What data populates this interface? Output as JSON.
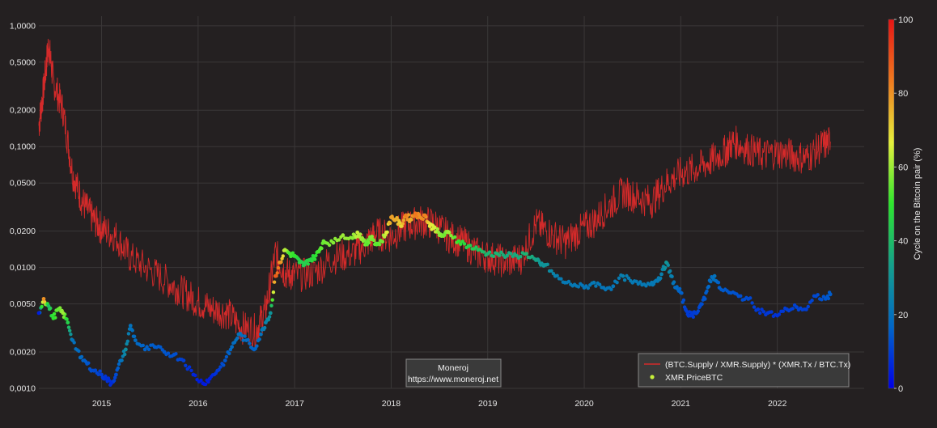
{
  "chart_data": {
    "type": "line",
    "title": "",
    "xlabel": "",
    "ylabel": "",
    "y_scale": "log",
    "ylim": [
      0.001,
      1.2
    ],
    "xlim": [
      2014.35,
      2022.9
    ],
    "grid": true,
    "y_ticks": [
      {
        "value": 1.0,
        "label": "1,0000"
      },
      {
        "value": 0.5,
        "label": "0,5000"
      },
      {
        "value": 0.2,
        "label": "0,2000"
      },
      {
        "value": 0.1,
        "label": "0,1000"
      },
      {
        "value": 0.05,
        "label": "0,0500"
      },
      {
        "value": 0.02,
        "label": "0,0200"
      },
      {
        "value": 0.01,
        "label": "0,0100"
      },
      {
        "value": 0.005,
        "label": "0,0050"
      },
      {
        "value": 0.002,
        "label": "0,0020"
      },
      {
        "value": 0.001,
        "label": "0,0010"
      }
    ],
    "x_ticks": [
      {
        "value": 2015,
        "label": "2015"
      },
      {
        "value": 2016,
        "label": "2016"
      },
      {
        "value": 2017,
        "label": "2017"
      },
      {
        "value": 2018,
        "label": "2018"
      },
      {
        "value": 2019,
        "label": "2019"
      },
      {
        "value": 2020,
        "label": "2020"
      },
      {
        "value": 2021,
        "label": "2021"
      },
      {
        "value": 2022,
        "label": "2022"
      }
    ],
    "series": [
      {
        "name": "(BTC.Supply / XMR.Supply) * (XMR.Tx / BTC.Tx)",
        "type": "line",
        "color": "#d42a2a",
        "x": [
          2014.35,
          2014.4,
          2014.45,
          2014.5,
          2014.6,
          2014.7,
          2014.8,
          2014.9,
          2015.0,
          2015.15,
          2015.3,
          2015.5,
          2015.7,
          2015.85,
          2016.0,
          2016.15,
          2016.3,
          2016.45,
          2016.6,
          2016.7,
          2016.8,
          2016.9,
          2017.0,
          2017.2,
          2017.4,
          2017.6,
          2017.75,
          2017.85,
          2018.0,
          2018.15,
          2018.3,
          2018.45,
          2018.6,
          2018.75,
          2018.9,
          2019.05,
          2019.2,
          2019.35,
          2019.5,
          2019.65,
          2019.8,
          2019.95,
          2020.1,
          2020.25,
          2020.4,
          2020.55,
          2020.7,
          2020.85,
          2021.0,
          2021.15,
          2021.3,
          2021.45,
          2021.55,
          2021.7,
          2021.85,
          2022.0,
          2022.15,
          2022.3,
          2022.45,
          2022.55
        ],
        "y": [
          0.15,
          0.3,
          0.7,
          0.35,
          0.2,
          0.06,
          0.035,
          0.026,
          0.021,
          0.018,
          0.012,
          0.0095,
          0.0075,
          0.0062,
          0.0052,
          0.0045,
          0.0042,
          0.0032,
          0.003,
          0.0045,
          0.013,
          0.009,
          0.0085,
          0.009,
          0.012,
          0.013,
          0.016,
          0.019,
          0.018,
          0.022,
          0.024,
          0.023,
          0.018,
          0.016,
          0.013,
          0.012,
          0.011,
          0.012,
          0.023,
          0.019,
          0.016,
          0.02,
          0.024,
          0.032,
          0.042,
          0.038,
          0.035,
          0.05,
          0.06,
          0.065,
          0.075,
          0.09,
          0.11,
          0.095,
          0.085,
          0.09,
          0.085,
          0.08,
          0.1,
          0.11
        ]
      },
      {
        "name": "XMR.PriceBTC",
        "type": "scatter",
        "color": "#c6f03a",
        "x": [
          2014.35,
          2014.4,
          2014.45,
          2014.5,
          2014.55,
          2014.6,
          2014.65,
          2014.7,
          2014.78,
          2014.85,
          2014.92,
          2015.0,
          2015.05,
          2015.1,
          2015.15,
          2015.2,
          2015.25,
          2015.3,
          2015.35,
          2015.45,
          2015.55,
          2015.65,
          2015.75,
          2015.85,
          2015.95,
          2016.05,
          2016.12,
          2016.2,
          2016.28,
          2016.35,
          2016.42,
          2016.5,
          2016.58,
          2016.65,
          2016.7,
          2016.75,
          2016.8,
          2016.85,
          2016.9,
          2016.95,
          2017.0,
          2017.05,
          2017.1,
          2017.15,
          2017.2,
          2017.25,
          2017.3,
          2017.4,
          2017.5,
          2017.6,
          2017.65,
          2017.7,
          2017.75,
          2017.8,
          2017.85,
          2017.9,
          2017.95,
          2018.0,
          2018.05,
          2018.1,
          2018.15,
          2018.2,
          2018.25,
          2018.3,
          2018.35,
          2018.4,
          2018.45,
          2018.5,
          2018.55,
          2018.6,
          2018.7,
          2018.8,
          2018.9,
          2019.0,
          2019.1,
          2019.2,
          2019.3,
          2019.4,
          2019.5,
          2019.55,
          2019.6,
          2019.7,
          2019.8,
          2019.9,
          2020.0,
          2020.1,
          2020.2,
          2020.3,
          2020.4,
          2020.5,
          2020.6,
          2020.7,
          2020.75,
          2020.8,
          2020.85,
          2020.9,
          2020.95,
          2021.0,
          2021.05,
          2021.1,
          2021.15,
          2021.2,
          2021.25,
          2021.3,
          2021.35,
          2021.4,
          2021.5,
          2021.6,
          2021.7,
          2021.8,
          2021.9,
          2022.0,
          2022.1,
          2022.2,
          2022.3,
          2022.4,
          2022.5,
          2022.55
        ],
        "y": [
          0.0042,
          0.0055,
          0.0048,
          0.0038,
          0.0045,
          0.0042,
          0.0035,
          0.0025,
          0.0018,
          0.0016,
          0.0014,
          0.0013,
          0.0012,
          0.0011,
          0.0013,
          0.0017,
          0.0021,
          0.0033,
          0.0025,
          0.0021,
          0.0022,
          0.002,
          0.0019,
          0.0017,
          0.0013,
          0.0011,
          0.0012,
          0.0014,
          0.0017,
          0.0022,
          0.0028,
          0.0025,
          0.0021,
          0.0028,
          0.0035,
          0.0042,
          0.0085,
          0.011,
          0.014,
          0.013,
          0.0125,
          0.011,
          0.0105,
          0.0115,
          0.012,
          0.0135,
          0.0165,
          0.016,
          0.0185,
          0.0175,
          0.0195,
          0.0175,
          0.0155,
          0.018,
          0.0155,
          0.0165,
          0.0195,
          0.026,
          0.025,
          0.022,
          0.027,
          0.025,
          0.028,
          0.026,
          0.027,
          0.022,
          0.0215,
          0.0185,
          0.0185,
          0.0195,
          0.0165,
          0.015,
          0.014,
          0.013,
          0.013,
          0.0125,
          0.0125,
          0.013,
          0.0115,
          0.0105,
          0.0105,
          0.0085,
          0.0075,
          0.0072,
          0.0068,
          0.0075,
          0.0068,
          0.007,
          0.0085,
          0.0075,
          0.0072,
          0.0075,
          0.0078,
          0.0088,
          0.011,
          0.0085,
          0.0068,
          0.0062,
          0.0045,
          0.004,
          0.0042,
          0.0048,
          0.0055,
          0.0078,
          0.0085,
          0.0068,
          0.0062,
          0.0058,
          0.0055,
          0.0045,
          0.0042,
          0.004,
          0.0045,
          0.0047,
          0.0045,
          0.0058,
          0.0055,
          0.006
        ],
        "cycle": [
          5,
          80,
          40,
          50,
          55,
          60,
          45,
          20,
          18,
          14,
          12,
          10,
          8,
          7,
          12,
          20,
          28,
          20,
          18,
          16,
          15,
          14,
          13,
          10,
          6,
          4,
          5,
          9,
          14,
          18,
          20,
          18,
          16,
          20,
          25,
          30,
          88,
          80,
          62,
          52,
          50,
          45,
          44,
          46,
          48,
          52,
          56,
          58,
          60,
          58,
          64,
          60,
          54,
          58,
          54,
          56,
          66,
          78,
          76,
          70,
          82,
          76,
          84,
          80,
          82,
          68,
          65,
          58,
          56,
          60,
          50,
          45,
          42,
          38,
          38,
          36,
          36,
          38,
          34,
          30,
          30,
          24,
          22,
          22,
          21,
          22,
          21,
          21,
          24,
          22,
          22,
          22,
          22,
          24,
          30,
          24,
          18,
          16,
          10,
          9,
          10,
          12,
          14,
          18,
          20,
          15,
          14,
          13,
          12,
          9,
          9,
          8,
          10,
          11,
          10,
          12,
          14,
          15
        ]
      }
    ],
    "colorbar": {
      "label": "Cycle on the Bitcoin pair (%)",
      "range": [
        0,
        100
      ],
      "ticks": [
        0,
        20,
        40,
        60,
        80,
        100
      ],
      "colorscale": [
        "#0000e6",
        "#0066c8",
        "#14a08c",
        "#2ee62e",
        "#e6f03c",
        "#f07a1e",
        "#e61414"
      ]
    },
    "legend": {
      "placement": "bottom-right",
      "entries": [
        "(BTC.Supply / XMR.Supply) * (XMR.Tx / BTC.Tx)",
        "XMR.PriceBTC"
      ]
    },
    "annotation": {
      "line1": "Moneroj",
      "line2": "https://www.moneroj.net"
    }
  }
}
